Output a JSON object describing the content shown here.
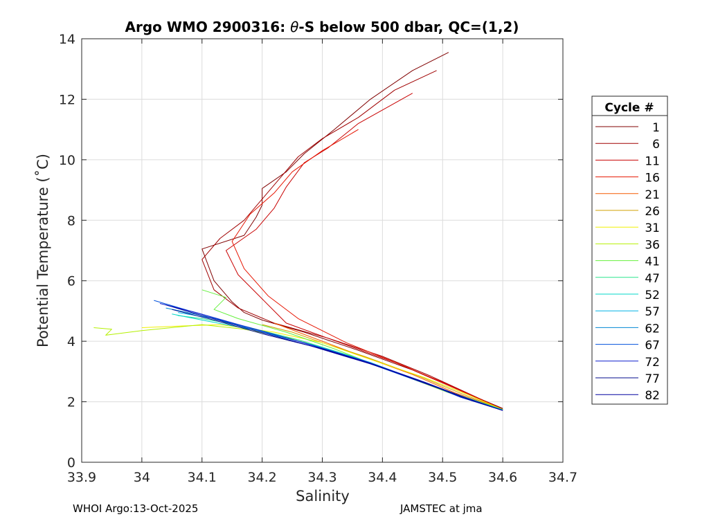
{
  "chart_data": {
    "type": "line",
    "title_prefix": "Argo WMO 2900316: ",
    "title_theta": "θ",
    "title_suffix": "-S below 500 dbar,  QC=(1,2)",
    "xlabel": "Salinity",
    "ylabel": "Potential Temperature (˚C)",
    "xlim": [
      33.9,
      34.7
    ],
    "ylim": [
      0,
      14
    ],
    "x_ticks": [
      33.9,
      34.0,
      34.1,
      34.2,
      34.3,
      34.4,
      34.5,
      34.6,
      34.7
    ],
    "x_tick_labels": [
      "33.9",
      "34",
      "34.1",
      "34.2",
      "34.3",
      "34.4",
      "34.5",
      "34.6",
      "34.7"
    ],
    "y_ticks": [
      0,
      2,
      4,
      6,
      8,
      10,
      12,
      14
    ],
    "y_tick_labels": [
      "0",
      "2",
      "4",
      "6",
      "8",
      "10",
      "12",
      "14"
    ],
    "grid": true,
    "legend": {
      "title": "Cycle #",
      "placement": "right",
      "entries": [
        {
          "label": "1",
          "color": "#800000"
        },
        {
          "label": "6",
          "color": "#a00000"
        },
        {
          "label": "11",
          "color": "#c80000"
        },
        {
          "label": "16",
          "color": "#e61400"
        },
        {
          "label": "21",
          "color": "#f55a00"
        },
        {
          "label": "26",
          "color": "#d2a000"
        },
        {
          "label": "31",
          "color": "#f0f000"
        },
        {
          "label": "36",
          "color": "#b4f000"
        },
        {
          "label": "41",
          "color": "#64f03c"
        },
        {
          "label": "47",
          "color": "#28e68c"
        },
        {
          "label": "52",
          "color": "#00d7c8"
        },
        {
          "label": "57",
          "color": "#00b4e6"
        },
        {
          "label": "62",
          "color": "#0087d2"
        },
        {
          "label": "67",
          "color": "#0050dc"
        },
        {
          "label": "72",
          "color": "#0a1ecd"
        },
        {
          "label": "77",
          "color": "#000a8c"
        },
        {
          "label": "82",
          "color": "#0000a0"
        }
      ]
    },
    "series": [
      {
        "name": "1",
        "color": "#800000",
        "x": [
          34.51,
          34.45,
          34.38,
          34.32,
          34.27,
          34.24,
          34.2,
          34.2,
          34.19,
          34.17,
          34.1,
          34.12,
          34.15,
          34.17,
          34.2,
          34.27,
          34.36,
          34.45,
          34.52,
          34.6
        ],
        "y": [
          13.55,
          12.95,
          12.0,
          11.0,
          10.2,
          9.6,
          9.05,
          8.5,
          8.1,
          7.5,
          7.05,
          6.0,
          5.3,
          4.95,
          4.7,
          4.3,
          3.7,
          3.05,
          2.45,
          1.78
        ]
      },
      {
        "name": "6",
        "color": "#a00000",
        "x": [
          34.49,
          34.42,
          34.36,
          34.3,
          34.26,
          34.23,
          34.2,
          34.17,
          34.13,
          34.1,
          34.12,
          34.16,
          34.22,
          34.31,
          34.4,
          34.48,
          34.6
        ],
        "y": [
          12.95,
          12.3,
          11.4,
          10.7,
          10.1,
          9.4,
          8.7,
          8.0,
          7.4,
          6.7,
          5.7,
          5.1,
          4.6,
          4.1,
          3.5,
          2.85,
          1.75
        ]
      },
      {
        "name": "11",
        "color": "#c80000",
        "x": [
          34.45,
          34.36,
          34.31,
          34.27,
          34.24,
          34.22,
          34.19,
          34.14,
          34.16,
          34.2,
          34.24,
          34.33,
          34.42,
          34.5,
          34.6
        ],
        "y": [
          12.2,
          11.2,
          10.4,
          9.9,
          9.1,
          8.4,
          7.7,
          7.0,
          6.2,
          5.4,
          4.6,
          3.95,
          3.3,
          2.65,
          1.75
        ]
      },
      {
        "name": "16",
        "color": "#e61400",
        "x": [
          34.36,
          34.3,
          34.25,
          34.22,
          34.18,
          34.15,
          34.17,
          34.21,
          34.26,
          34.34,
          34.44,
          34.52,
          34.6
        ],
        "y": [
          11.0,
          10.3,
          9.6,
          8.9,
          8.2,
          7.3,
          6.4,
          5.5,
          4.75,
          3.95,
          3.15,
          2.45,
          1.75
        ]
      },
      {
        "name": "21",
        "color": "#f55a00",
        "x": [
          34.22,
          34.26,
          34.3,
          34.36,
          34.45,
          34.52,
          34.6
        ],
        "y": [
          4.6,
          4.3,
          4.0,
          3.55,
          2.9,
          2.3,
          1.74
        ]
      },
      {
        "name": "26",
        "color": "#d2a000",
        "x": [
          34.2,
          34.25,
          34.3,
          34.37,
          34.46,
          34.53,
          34.6
        ],
        "y": [
          4.55,
          4.3,
          3.95,
          3.5,
          2.85,
          2.28,
          1.74
        ]
      },
      {
        "name": "31",
        "color": "#f0f000",
        "x": [
          34.0,
          34.06,
          34.13,
          34.22,
          34.3,
          34.38,
          34.47,
          34.54,
          34.6
        ],
        "y": [
          4.45,
          4.5,
          4.55,
          4.3,
          3.95,
          3.4,
          2.8,
          2.25,
          1.74
        ]
      },
      {
        "name": "36",
        "color": "#b4f000",
        "x": [
          33.92,
          33.95,
          33.94,
          34.0,
          34.1,
          34.17,
          34.26,
          34.34,
          34.43,
          34.51,
          34.6
        ],
        "y": [
          4.45,
          4.4,
          4.2,
          4.35,
          4.55,
          4.4,
          4.05,
          3.55,
          2.9,
          2.3,
          1.74
        ]
      },
      {
        "name": "41",
        "color": "#64f03c",
        "x": [
          34.1,
          34.14,
          34.12,
          34.16,
          34.24,
          34.32,
          34.41,
          34.5,
          34.6
        ],
        "y": [
          5.7,
          5.45,
          5.05,
          4.75,
          4.3,
          3.75,
          3.05,
          2.4,
          1.74
        ]
      },
      {
        "name": "47",
        "color": "#28e68c",
        "x": [
          34.06,
          34.1,
          34.17,
          34.26,
          34.35,
          34.44,
          34.52,
          34.6
        ],
        "y": [
          4.85,
          4.75,
          4.5,
          4.05,
          3.5,
          2.85,
          2.25,
          1.73
        ]
      },
      {
        "name": "52",
        "color": "#00d7c8",
        "x": [
          34.05,
          34.1,
          34.18,
          34.27,
          34.36,
          34.45,
          34.53,
          34.6
        ],
        "y": [
          4.9,
          4.7,
          4.4,
          3.95,
          3.4,
          2.78,
          2.2,
          1.73
        ]
      },
      {
        "name": "57",
        "color": "#00b4e6",
        "x": [
          34.06,
          34.12,
          34.2,
          34.29,
          34.38,
          34.46,
          34.53,
          34.6
        ],
        "y": [
          4.95,
          4.75,
          4.3,
          3.85,
          3.3,
          2.7,
          2.15,
          1.72
        ]
      },
      {
        "name": "62",
        "color": "#0087d2",
        "x": [
          34.04,
          34.1,
          34.18,
          34.27,
          34.37,
          34.46,
          34.53,
          34.6
        ],
        "y": [
          5.1,
          4.85,
          4.45,
          3.95,
          3.35,
          2.72,
          2.15,
          1.72
        ]
      },
      {
        "name": "67",
        "color": "#0050dc",
        "x": [
          34.02,
          34.08,
          34.16,
          34.26,
          34.36,
          34.45,
          34.53,
          34.6
        ],
        "y": [
          5.35,
          5.0,
          4.55,
          4.0,
          3.4,
          2.75,
          2.18,
          1.72
        ]
      },
      {
        "name": "72",
        "color": "#0a1ecd",
        "x": [
          34.03,
          34.09,
          34.17,
          34.27,
          34.37,
          34.46,
          34.53,
          34.6
        ],
        "y": [
          5.25,
          4.95,
          4.5,
          3.95,
          3.35,
          2.72,
          2.15,
          1.71
        ]
      },
      {
        "name": "77",
        "color": "#000a8c",
        "x": [
          34.05,
          34.12,
          34.2,
          34.3,
          34.39,
          34.47,
          34.54,
          34.6
        ],
        "y": [
          5.05,
          4.7,
          4.25,
          3.75,
          3.2,
          2.62,
          2.1,
          1.71
        ]
      },
      {
        "name": "82",
        "color": "#0000a0",
        "x": [
          34.04,
          34.1,
          34.18,
          34.28,
          34.38,
          34.47,
          34.54,
          34.6
        ],
        "y": [
          5.2,
          4.85,
          4.4,
          3.85,
          3.25,
          2.65,
          2.12,
          1.71
        ]
      }
    ]
  },
  "footer": {
    "left": "WHOI Argo:13-Oct-2025",
    "right": "JAMSTEC at jma"
  }
}
